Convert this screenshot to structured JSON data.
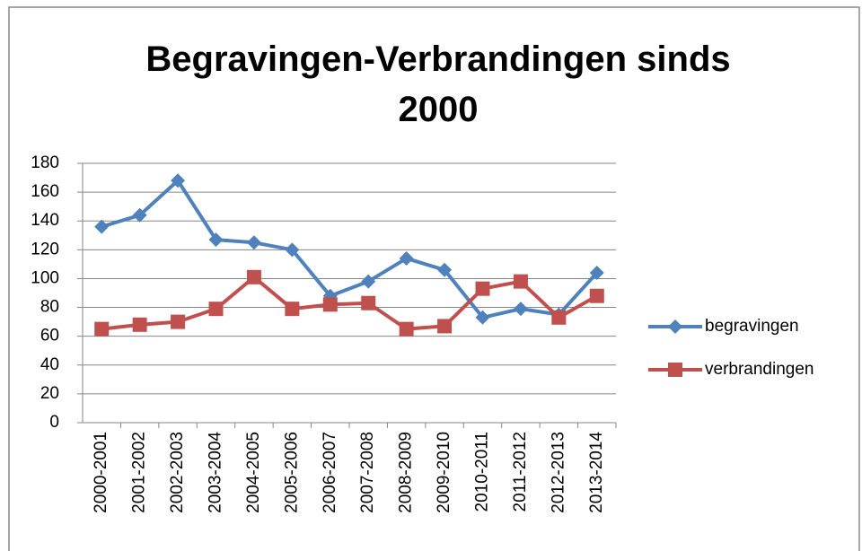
{
  "chart_data": {
    "type": "line",
    "title": "Begravingen-Verbrandingen sinds 2000",
    "categories": [
      "2000-2001",
      "2001-2002",
      "2002-2003",
      "2003-2004",
      "2004-2005",
      "2005-2006",
      "2006-2007",
      "2007-2008",
      "2008-2009",
      "2009-2010",
      "2010-2011",
      "2011-2012",
      "2012-2013",
      "2013-2014"
    ],
    "series": [
      {
        "name": "begravingen",
        "color": "#4f81bd",
        "marker": "diamond",
        "values": [
          136,
          144,
          168,
          127,
          125,
          120,
          88,
          98,
          114,
          106,
          73,
          79,
          75,
          104
        ]
      },
      {
        "name": "verbrandingen",
        "color": "#c0504d",
        "marker": "square",
        "values": [
          65,
          68,
          70,
          79,
          101,
          79,
          82,
          83,
          65,
          67,
          93,
          98,
          73,
          88
        ]
      }
    ],
    "ylim": [
      0,
      180
    ],
    "yticks": [
      0,
      20,
      40,
      60,
      80,
      100,
      120,
      140,
      160,
      180
    ],
    "grid": true,
    "legend": "right"
  }
}
